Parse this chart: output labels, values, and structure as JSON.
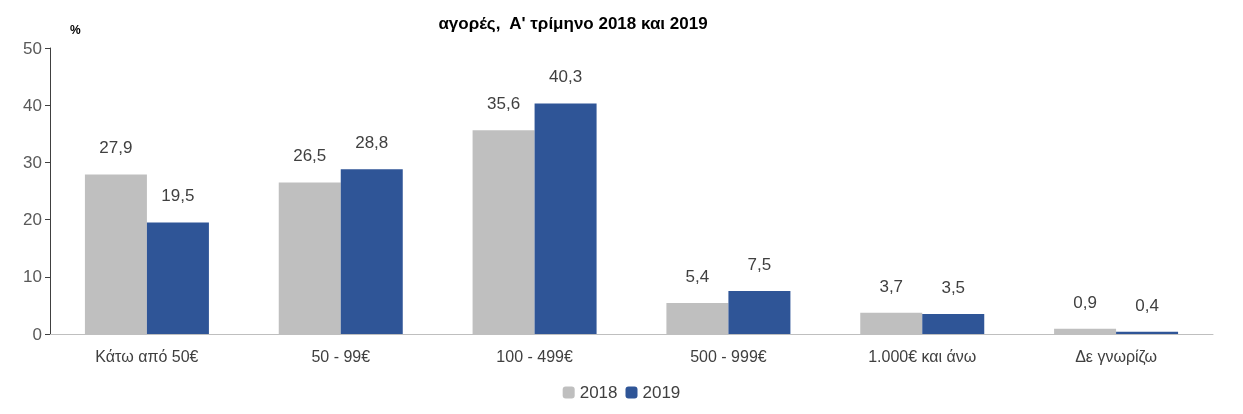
{
  "chart_data": {
    "type": "bar",
    "title": "αγορές,  Α' τρίμηνο 2018 και 2019",
    "ylabel": "%",
    "categories": [
      "Κάτω από 50€",
      "50 - 99€",
      "100 - 499€",
      "500 - 999€",
      "1.000€ και άνω",
      "Δε γνωρίζω"
    ],
    "series": [
      {
        "name": "2018",
        "color": "#bfbfbf",
        "values": [
          27.9,
          26.5,
          35.6,
          5.4,
          3.7,
          0.9
        ],
        "value_labels": [
          "27,9",
          "26,5",
          "35,6",
          "5,4",
          "3,7",
          "0,9"
        ]
      },
      {
        "name": "2019",
        "color": "#2f5597",
        "values": [
          19.5,
          28.8,
          40.3,
          7.5,
          3.5,
          0.4
        ],
        "value_labels": [
          "19,5",
          "28,8",
          "40,3",
          "7,5",
          "3,5",
          "0,4"
        ]
      }
    ],
    "ylim": [
      0,
      50
    ],
    "yticks": [
      0,
      10,
      20,
      30,
      40,
      50
    ],
    "grid": false,
    "legend": "bottom"
  }
}
